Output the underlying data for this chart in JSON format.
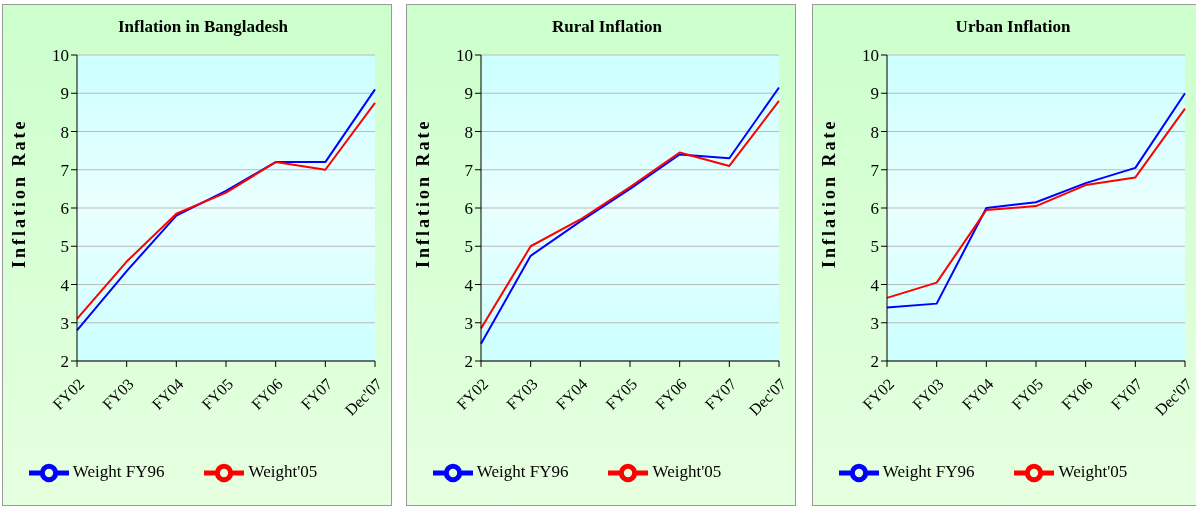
{
  "chart_data": [
    {
      "type": "line",
      "title": "Inflation in Bangladesh",
      "ylabel": "Inflation Rate",
      "categories": [
        "FY02",
        "FY03",
        "FY04",
        "FY05",
        "FY06",
        "FY07",
        "Dec'07"
      ],
      "ylim": [
        2,
        10
      ],
      "yticks": [
        2,
        3,
        4,
        5,
        6,
        7,
        8,
        9,
        10
      ],
      "grid": "y",
      "legend": "bottom",
      "marker": "none",
      "series": [
        {
          "name": "Weight FY96",
          "color": "#0000ff",
          "values": [
            2.8,
            4.35,
            5.8,
            6.45,
            7.2,
            7.2,
            9.1
          ]
        },
        {
          "name": "Weight'05",
          "color": "#ff0000",
          "values": [
            3.1,
            4.6,
            5.85,
            6.4,
            7.2,
            7.0,
            8.75
          ]
        }
      ]
    },
    {
      "type": "line",
      "title": "Rural Inflation",
      "ylabel": "Inflation Rate",
      "categories": [
        "FY02",
        "FY03",
        "FY04",
        "FY05",
        "FY06",
        "FY07",
        "Dec'07"
      ],
      "ylim": [
        2,
        10
      ],
      "yticks": [
        2,
        3,
        4,
        5,
        6,
        7,
        8,
        9,
        10
      ],
      "grid": "y",
      "legend": "bottom",
      "marker": "none",
      "series": [
        {
          "name": "Weight FY96",
          "color": "#0000ff",
          "values": [
            2.45,
            4.75,
            5.65,
            6.5,
            7.4,
            7.3,
            9.15
          ]
        },
        {
          "name": "Weight'05",
          "color": "#ff0000",
          "values": [
            2.85,
            5.0,
            5.7,
            6.55,
            7.45,
            7.1,
            8.8
          ]
        }
      ]
    },
    {
      "type": "line",
      "title": "Urban Inflation",
      "ylabel": "Inflation Rate",
      "categories": [
        "FY02",
        "FY03",
        "FY04",
        "FY05",
        "FY06",
        "FY07",
        "Dec'07"
      ],
      "ylim": [
        2,
        10
      ],
      "yticks": [
        2,
        3,
        4,
        5,
        6,
        7,
        8,
        9,
        10
      ],
      "grid": "y",
      "legend": "bottom",
      "marker": "none",
      "series": [
        {
          "name": "Weight FY96",
          "color": "#0000ff",
          "values": [
            3.4,
            3.5,
            6.0,
            6.15,
            6.65,
            7.05,
            9.0
          ]
        },
        {
          "name": "Weight'05",
          "color": "#ff0000",
          "values": [
            3.65,
            4.05,
            5.95,
            6.05,
            6.6,
            6.8,
            8.6
          ]
        }
      ]
    }
  ]
}
